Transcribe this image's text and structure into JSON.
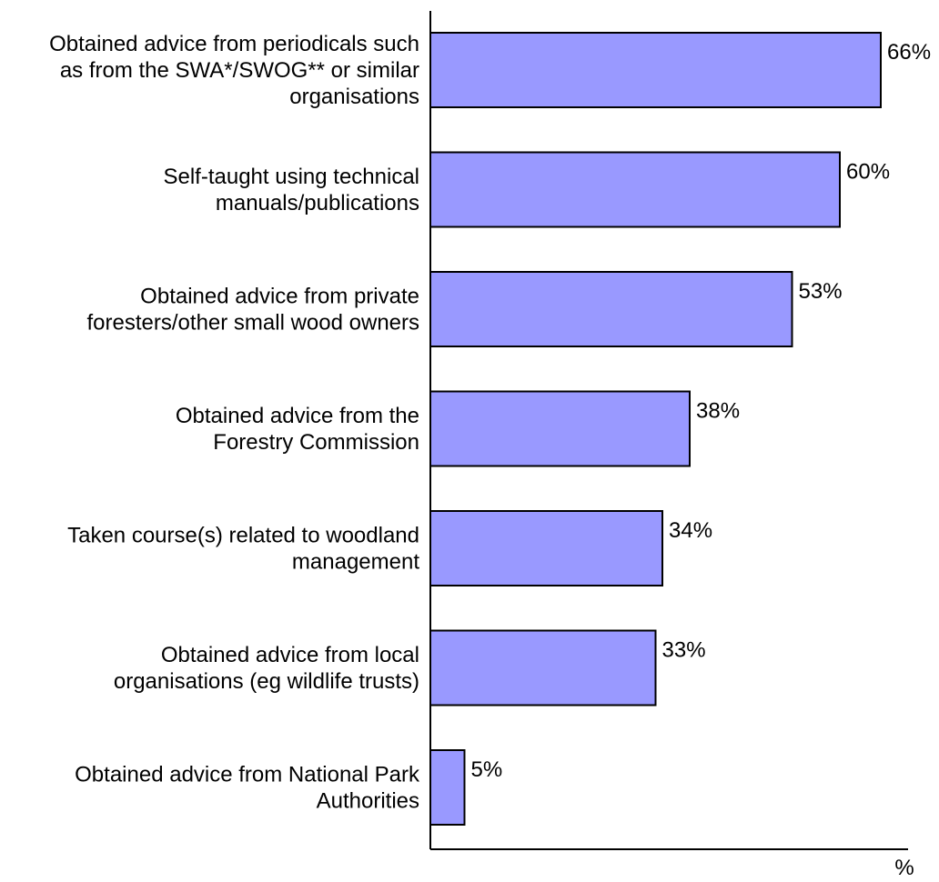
{
  "chart_data": {
    "type": "bar",
    "orientation": "horizontal",
    "categories": [
      [
        "Obtained advice from periodicals such",
        "as from the SWA*/SWOG** or similar",
        "organisations"
      ],
      [
        "Self-taught using technical",
        "manuals/publications"
      ],
      [
        "Obtained advice from private",
        "foresters/other small wood owners"
      ],
      [
        "Obtained advice from the",
        "Forestry Commission"
      ],
      [
        "Taken course(s) related to woodland",
        "management"
      ],
      [
        "Obtained advice from local",
        "organisations (eg wildlife trusts)"
      ],
      [
        "Obtained advice from National Park",
        "Authorities"
      ]
    ],
    "values": [
      66,
      60,
      53,
      38,
      34,
      33,
      5
    ],
    "value_labels": [
      "66%",
      "60%",
      "53%",
      "38%",
      "34%",
      "33%",
      "5%"
    ],
    "xlabel": "%",
    "ylabel": "",
    "title": "",
    "xlim": [
      0,
      70
    ],
    "grid": false,
    "legend": "none",
    "bar_color": "#9999FF",
    "bar_edge_color": "#000000"
  }
}
